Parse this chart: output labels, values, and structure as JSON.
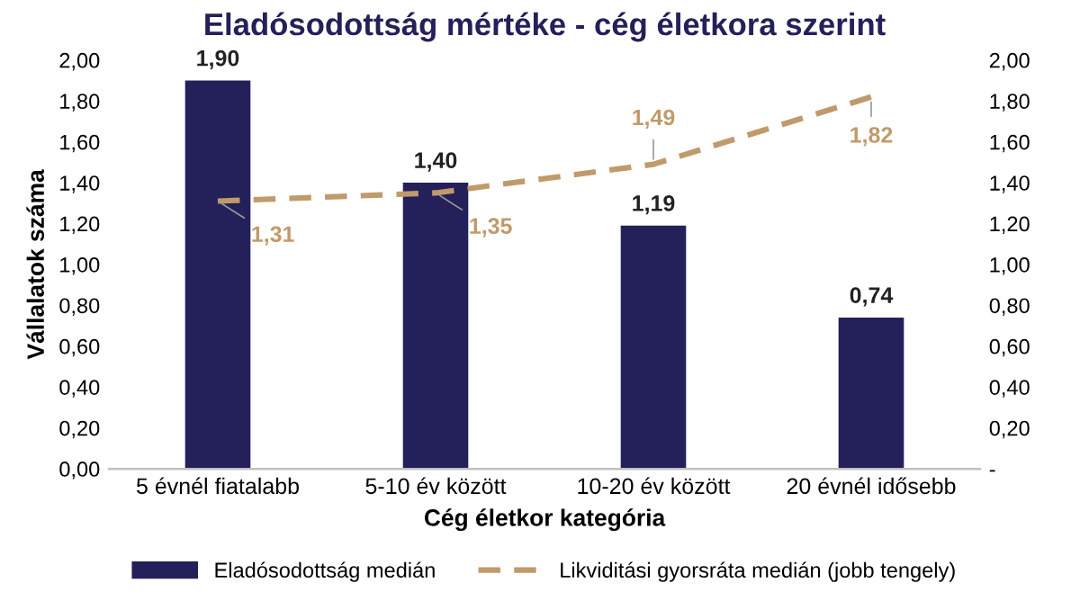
{
  "chart_data": {
    "type": "bar",
    "title": "Eladósodottság mértéke - cég életkora szerint",
    "xlabel": "Cég életkor kategória",
    "ylabel": "Vállalatok száma",
    "categories": [
      "5 évnél fiatalabb",
      "5-10 év között",
      "10-20 év között",
      "20 évnél idősebb"
    ],
    "series": [
      {
        "name": "Eladósodottság medián",
        "color": "#24205a",
        "values": [
          1.9,
          1.4,
          1.19,
          0.74
        ],
        "value_labels": [
          "1,90",
          "1,40",
          "1,19",
          "0,74"
        ]
      },
      {
        "name": "Likviditási gyorsráta medián (jobb tengely)",
        "type": "line",
        "axis": "y2",
        "color": "#c19a6b",
        "line_style": "dashed",
        "marker": "none",
        "values": [
          1.31,
          1.35,
          1.49,
          1.82
        ],
        "value_labels": [
          "1,31",
          "1,35",
          "1,49",
          "1,82"
        ]
      }
    ],
    "ylim": [
      0,
      2
    ],
    "yticks": [
      {
        "value": 0,
        "label": "0,00"
      },
      {
        "value": 0.2,
        "label": "0,20"
      },
      {
        "value": 0.4,
        "label": "0,40"
      },
      {
        "value": 0.6,
        "label": "0,60"
      },
      {
        "value": 0.8,
        "label": "0,80"
      },
      {
        "value": 1.0,
        "label": "1,00"
      },
      {
        "value": 1.2,
        "label": "1,20"
      },
      {
        "value": 1.4,
        "label": "1,40"
      },
      {
        "value": 1.6,
        "label": "1,60"
      },
      {
        "value": 1.8,
        "label": "1,80"
      },
      {
        "value": 2.0,
        "label": "2,00"
      }
    ],
    "y2lim": [
      0,
      2
    ],
    "y2ticks": [
      {
        "value": 0,
        "label": "-"
      },
      {
        "value": 0.2,
        "label": "0,20"
      },
      {
        "value": 0.4,
        "label": "0,40"
      },
      {
        "value": 0.6,
        "label": "0,60"
      },
      {
        "value": 0.8,
        "label": "0,80"
      },
      {
        "value": 1.0,
        "label": "1,00"
      },
      {
        "value": 1.2,
        "label": "1,20"
      },
      {
        "value": 1.4,
        "label": "1,40"
      },
      {
        "value": 1.6,
        "label": "1,60"
      },
      {
        "value": 1.8,
        "label": "1,80"
      },
      {
        "value": 2.0,
        "label": "2,00"
      }
    ],
    "grid": false,
    "legend": "bottom"
  }
}
